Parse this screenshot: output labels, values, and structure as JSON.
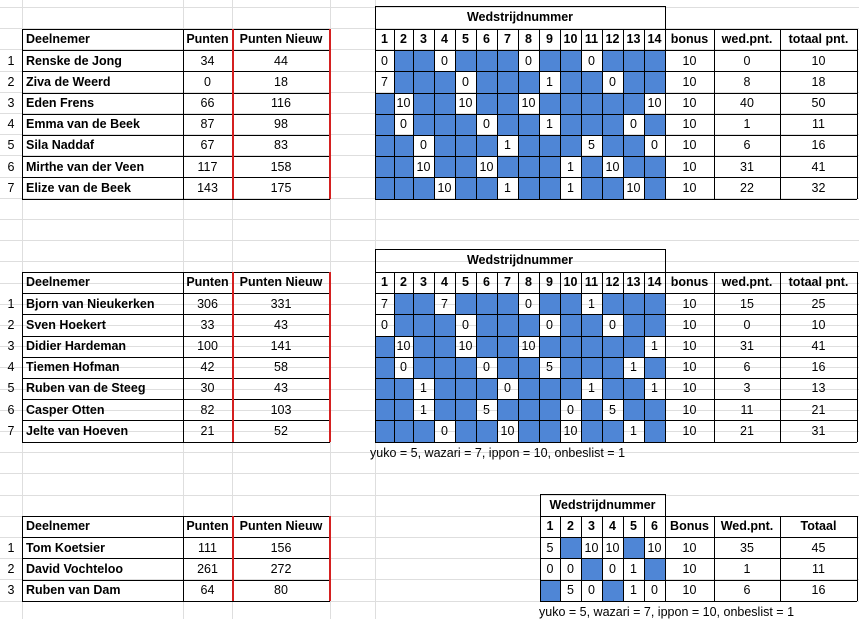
{
  "colors": {
    "blue": "#4f86d6",
    "red_divider": "#d42020",
    "grid": "#dedede"
  },
  "tables": [
    {
      "match_header": "Wedstrijdnummer",
      "header": [
        "Deelnemer",
        "Punten",
        "Punten Nieuw",
        "1",
        "2",
        "3",
        "4",
        "5",
        "6",
        "7",
        "8",
        "9",
        "10",
        "11",
        "12",
        "13",
        "14",
        "bonus",
        "wed.pnt.",
        "totaal pnt."
      ],
      "rows": [
        {
          "nr": "1",
          "name": "Renske de Jong",
          "punten": "34",
          "nieuw": "44",
          "m": [
            [
              "0",
              0
            ],
            [
              "",
              1
            ],
            [
              "",
              1
            ],
            [
              "0",
              0
            ],
            [
              "",
              1
            ],
            [
              "",
              1
            ],
            [
              "",
              1
            ],
            [
              "0",
              0
            ],
            [
              "",
              1
            ],
            [
              "",
              1
            ],
            [
              "0",
              0
            ],
            [
              "",
              1
            ],
            [
              "",
              1
            ],
            [
              "",
              1
            ]
          ],
          "bonus": "10",
          "wed": "0",
          "tot": "10"
        },
        {
          "nr": "2",
          "name": "Ziva de Weerd",
          "punten": "0",
          "nieuw": "18",
          "m": [
            [
              "7",
              0
            ],
            [
              "",
              1
            ],
            [
              "",
              1
            ],
            [
              "",
              1
            ],
            [
              "0",
              0
            ],
            [
              "",
              1
            ],
            [
              "",
              1
            ],
            [
              "",
              1
            ],
            [
              "1",
              0
            ],
            [
              "",
              1
            ],
            [
              "",
              1
            ],
            [
              "0",
              0
            ],
            [
              "",
              1
            ],
            [
              "",
              1
            ]
          ],
          "bonus": "10",
          "wed": "8",
          "tot": "18"
        },
        {
          "nr": "3",
          "name": "Eden Frens",
          "punten": "66",
          "nieuw": "116",
          "m": [
            [
              "",
              1
            ],
            [
              "10",
              0
            ],
            [
              "",
              1
            ],
            [
              "",
              1
            ],
            [
              "10",
              0
            ],
            [
              "",
              1
            ],
            [
              "",
              1
            ],
            [
              "10",
              0
            ],
            [
              "",
              1
            ],
            [
              "",
              1
            ],
            [
              "",
              1
            ],
            [
              "",
              1
            ],
            [
              "",
              1
            ],
            [
              "10",
              0
            ]
          ],
          "bonus": "10",
          "wed": "40",
          "tot": "50"
        },
        {
          "nr": "4",
          "name": "Emma van de Beek",
          "punten": "87",
          "nieuw": "98",
          "m": [
            [
              "",
              1
            ],
            [
              "0",
              0
            ],
            [
              "",
              1
            ],
            [
              "",
              1
            ],
            [
              "",
              1
            ],
            [
              "0",
              0
            ],
            [
              "",
              1
            ],
            [
              "",
              1
            ],
            [
              "1",
              0
            ],
            [
              "",
              1
            ],
            [
              "",
              1
            ],
            [
              "",
              1
            ],
            [
              "0",
              0
            ],
            [
              "",
              1
            ]
          ],
          "bonus": "10",
          "wed": "1",
          "tot": "11"
        },
        {
          "nr": "5",
          "name": "Sila Naddaf",
          "punten": "67",
          "nieuw": "83",
          "m": [
            [
              "",
              1
            ],
            [
              "",
              1
            ],
            [
              "0",
              0
            ],
            [
              "",
              1
            ],
            [
              "",
              1
            ],
            [
              "",
              1
            ],
            [
              "1",
              0
            ],
            [
              "",
              1
            ],
            [
              "",
              1
            ],
            [
              "",
              1
            ],
            [
              "5",
              0
            ],
            [
              "",
              1
            ],
            [
              "",
              1
            ],
            [
              "0",
              0
            ]
          ],
          "bonus": "10",
          "wed": "6",
          "tot": "16"
        },
        {
          "nr": "6",
          "name": "Mirthe van der Veen",
          "punten": "117",
          "nieuw": "158",
          "m": [
            [
              "",
              1
            ],
            [
              "",
              1
            ],
            [
              "10",
              0
            ],
            [
              "",
              1
            ],
            [
              "",
              1
            ],
            [
              "10",
              0
            ],
            [
              "",
              1
            ],
            [
              "",
              1
            ],
            [
              "",
              1
            ],
            [
              "1",
              0
            ],
            [
              "",
              1
            ],
            [
              "10",
              0
            ],
            [
              "",
              1
            ],
            [
              "",
              1
            ]
          ],
          "bonus": "10",
          "wed": "31",
          "tot": "41"
        },
        {
          "nr": "7",
          "name": "Elize van de Beek",
          "punten": "143",
          "nieuw": "175",
          "m": [
            [
              "",
              1
            ],
            [
              "",
              1
            ],
            [
              "",
              1
            ],
            [
              "10",
              0
            ],
            [
              "",
              1
            ],
            [
              "",
              1
            ],
            [
              "1",
              0
            ],
            [
              "",
              1
            ],
            [
              "",
              1
            ],
            [
              "1",
              0
            ],
            [
              "",
              1
            ],
            [
              "",
              1
            ],
            [
              "10",
              0
            ],
            [
              "",
              1
            ]
          ],
          "bonus": "10",
          "wed": "22",
          "tot": "32"
        }
      ]
    },
    {
      "match_header": "Wedstrijdnummer",
      "header": [
        "Deelnemer",
        "Punten",
        "Punten Nieuw",
        "1",
        "2",
        "3",
        "4",
        "5",
        "6",
        "7",
        "8",
        "9",
        "10",
        "11",
        "12",
        "13",
        "14",
        "bonus",
        "wed.pnt.",
        "totaal pnt."
      ],
      "rows": [
        {
          "nr": "1",
          "name": "Bjorn van Nieukerken",
          "punten": "306",
          "nieuw": "331",
          "m": [
            [
              "7",
              0
            ],
            [
              "",
              1
            ],
            [
              "",
              1
            ],
            [
              "7",
              0
            ],
            [
              "",
              1
            ],
            [
              "",
              1
            ],
            [
              "",
              1
            ],
            [
              "0",
              0
            ],
            [
              "",
              1
            ],
            [
              "",
              1
            ],
            [
              "1",
              0
            ],
            [
              "",
              1
            ],
            [
              "",
              1
            ],
            [
              "",
              1
            ]
          ],
          "bonus": "10",
          "wed": "15",
          "tot": "25"
        },
        {
          "nr": "2",
          "name": "Sven Hoekert",
          "punten": "33",
          "nieuw": "43",
          "m": [
            [
              "0",
              0
            ],
            [
              "",
              1
            ],
            [
              "",
              1
            ],
            [
              "",
              1
            ],
            [
              "0",
              0
            ],
            [
              "",
              1
            ],
            [
              "",
              1
            ],
            [
              "",
              1
            ],
            [
              "0",
              0
            ],
            [
              "",
              1
            ],
            [
              "",
              1
            ],
            [
              "0",
              0
            ],
            [
              "",
              1
            ],
            [
              "",
              1
            ]
          ],
          "bonus": "10",
          "wed": "0",
          "tot": "10"
        },
        {
          "nr": "3",
          "name": "Didier Hardeman",
          "punten": "100",
          "nieuw": "141",
          "m": [
            [
              "",
              1
            ],
            [
              "10",
              0
            ],
            [
              "",
              1
            ],
            [
              "",
              1
            ],
            [
              "10",
              0
            ],
            [
              "",
              1
            ],
            [
              "",
              1
            ],
            [
              "10",
              0
            ],
            [
              "",
              1
            ],
            [
              "",
              1
            ],
            [
              "",
              1
            ],
            [
              "",
              1
            ],
            [
              "",
              1
            ],
            [
              "1",
              0
            ]
          ],
          "bonus": "10",
          "wed": "31",
          "tot": "41"
        },
        {
          "nr": "4",
          "name": "Tiemen Hofman",
          "punten": "42",
          "nieuw": "58",
          "m": [
            [
              "",
              1
            ],
            [
              "0",
              0
            ],
            [
              "",
              1
            ],
            [
              "",
              1
            ],
            [
              "",
              1
            ],
            [
              "0",
              0
            ],
            [
              "",
              1
            ],
            [
              "",
              1
            ],
            [
              "5",
              0
            ],
            [
              "",
              1
            ],
            [
              "",
              1
            ],
            [
              "",
              1
            ],
            [
              "1",
              0
            ],
            [
              "",
              1
            ]
          ],
          "bonus": "10",
          "wed": "6",
          "tot": "16"
        },
        {
          "nr": "5",
          "name": "Ruben van de Steeg",
          "punten": "30",
          "nieuw": "43",
          "m": [
            [
              "",
              1
            ],
            [
              "",
              1
            ],
            [
              "1",
              0
            ],
            [
              "",
              1
            ],
            [
              "",
              1
            ],
            [
              "",
              1
            ],
            [
              "0",
              0
            ],
            [
              "",
              1
            ],
            [
              "",
              1
            ],
            [
              "",
              1
            ],
            [
              "1",
              0
            ],
            [
              "",
              1
            ],
            [
              "",
              1
            ],
            [
              "1",
              0
            ]
          ],
          "bonus": "10",
          "wed": "3",
          "tot": "13"
        },
        {
          "nr": "6",
          "name": "Casper Otten",
          "punten": "82",
          "nieuw": "103",
          "m": [
            [
              "",
              1
            ],
            [
              "",
              1
            ],
            [
              "1",
              0
            ],
            [
              "",
              1
            ],
            [
              "",
              1
            ],
            [
              "5",
              0
            ],
            [
              "",
              1
            ],
            [
              "",
              1
            ],
            [
              "",
              1
            ],
            [
              "0",
              0
            ],
            [
              "",
              1
            ],
            [
              "5",
              0
            ],
            [
              "",
              1
            ],
            [
              "",
              1
            ]
          ],
          "bonus": "10",
          "wed": "11",
          "tot": "21"
        },
        {
          "nr": "7",
          "name": "Jelte van Hoeven",
          "punten": "21",
          "nieuw": "52",
          "m": [
            [
              "",
              1
            ],
            [
              "",
              1
            ],
            [
              "",
              1
            ],
            [
              "0",
              0
            ],
            [
              "",
              1
            ],
            [
              "",
              1
            ],
            [
              "10",
              0
            ],
            [
              "",
              1
            ],
            [
              "",
              1
            ],
            [
              "10",
              0
            ],
            [
              "",
              1
            ],
            [
              "",
              1
            ],
            [
              "1",
              0
            ],
            [
              "",
              1
            ]
          ],
          "bonus": "10",
          "wed": "21",
          "tot": "31"
        }
      ],
      "note": "yuko = 5, wazari = 7, ippon = 10, onbeslist = 1"
    },
    {
      "match_header": "Wedstrijdnummer",
      "header": [
        "Deelnemer",
        "Punten",
        "Punten Nieuw",
        "1",
        "2",
        "3",
        "4",
        "5",
        "6",
        "Bonus",
        "Wed.pnt.",
        "Totaal"
      ],
      "rows": [
        {
          "nr": "1",
          "name": "Tom Koetsier",
          "punten": "111",
          "nieuw": "156",
          "m": [
            [
              "5",
              0
            ],
            [
              "",
              1
            ],
            [
              "10",
              0
            ],
            [
              "10",
              0
            ],
            [
              "",
              1
            ],
            [
              "10",
              0
            ]
          ],
          "bonus": "10",
          "wed": "35",
          "tot": "45"
        },
        {
          "nr": "2",
          "name": "David Vochteloo",
          "punten": "261",
          "nieuw": "272",
          "m": [
            [
              "0",
              0
            ],
            [
              "0",
              0
            ],
            [
              "",
              1
            ],
            [
              "0",
              0
            ],
            [
              "1",
              0
            ],
            [
              "",
              1
            ]
          ],
          "bonus": "10",
          "wed": "1",
          "tot": "11"
        },
        {
          "nr": "3",
          "name": "Ruben van Dam",
          "punten": "64",
          "nieuw": "80",
          "m": [
            [
              "",
              1
            ],
            [
              "5",
              0
            ],
            [
              "0",
              0
            ],
            [
              "",
              1
            ],
            [
              "1",
              0
            ],
            [
              "0",
              0
            ]
          ],
          "bonus": "10",
          "wed": "6",
          "tot": "16"
        }
      ],
      "note": "yuko = 5, wazari = 7, ippon = 10, onbeslist = 1"
    }
  ]
}
